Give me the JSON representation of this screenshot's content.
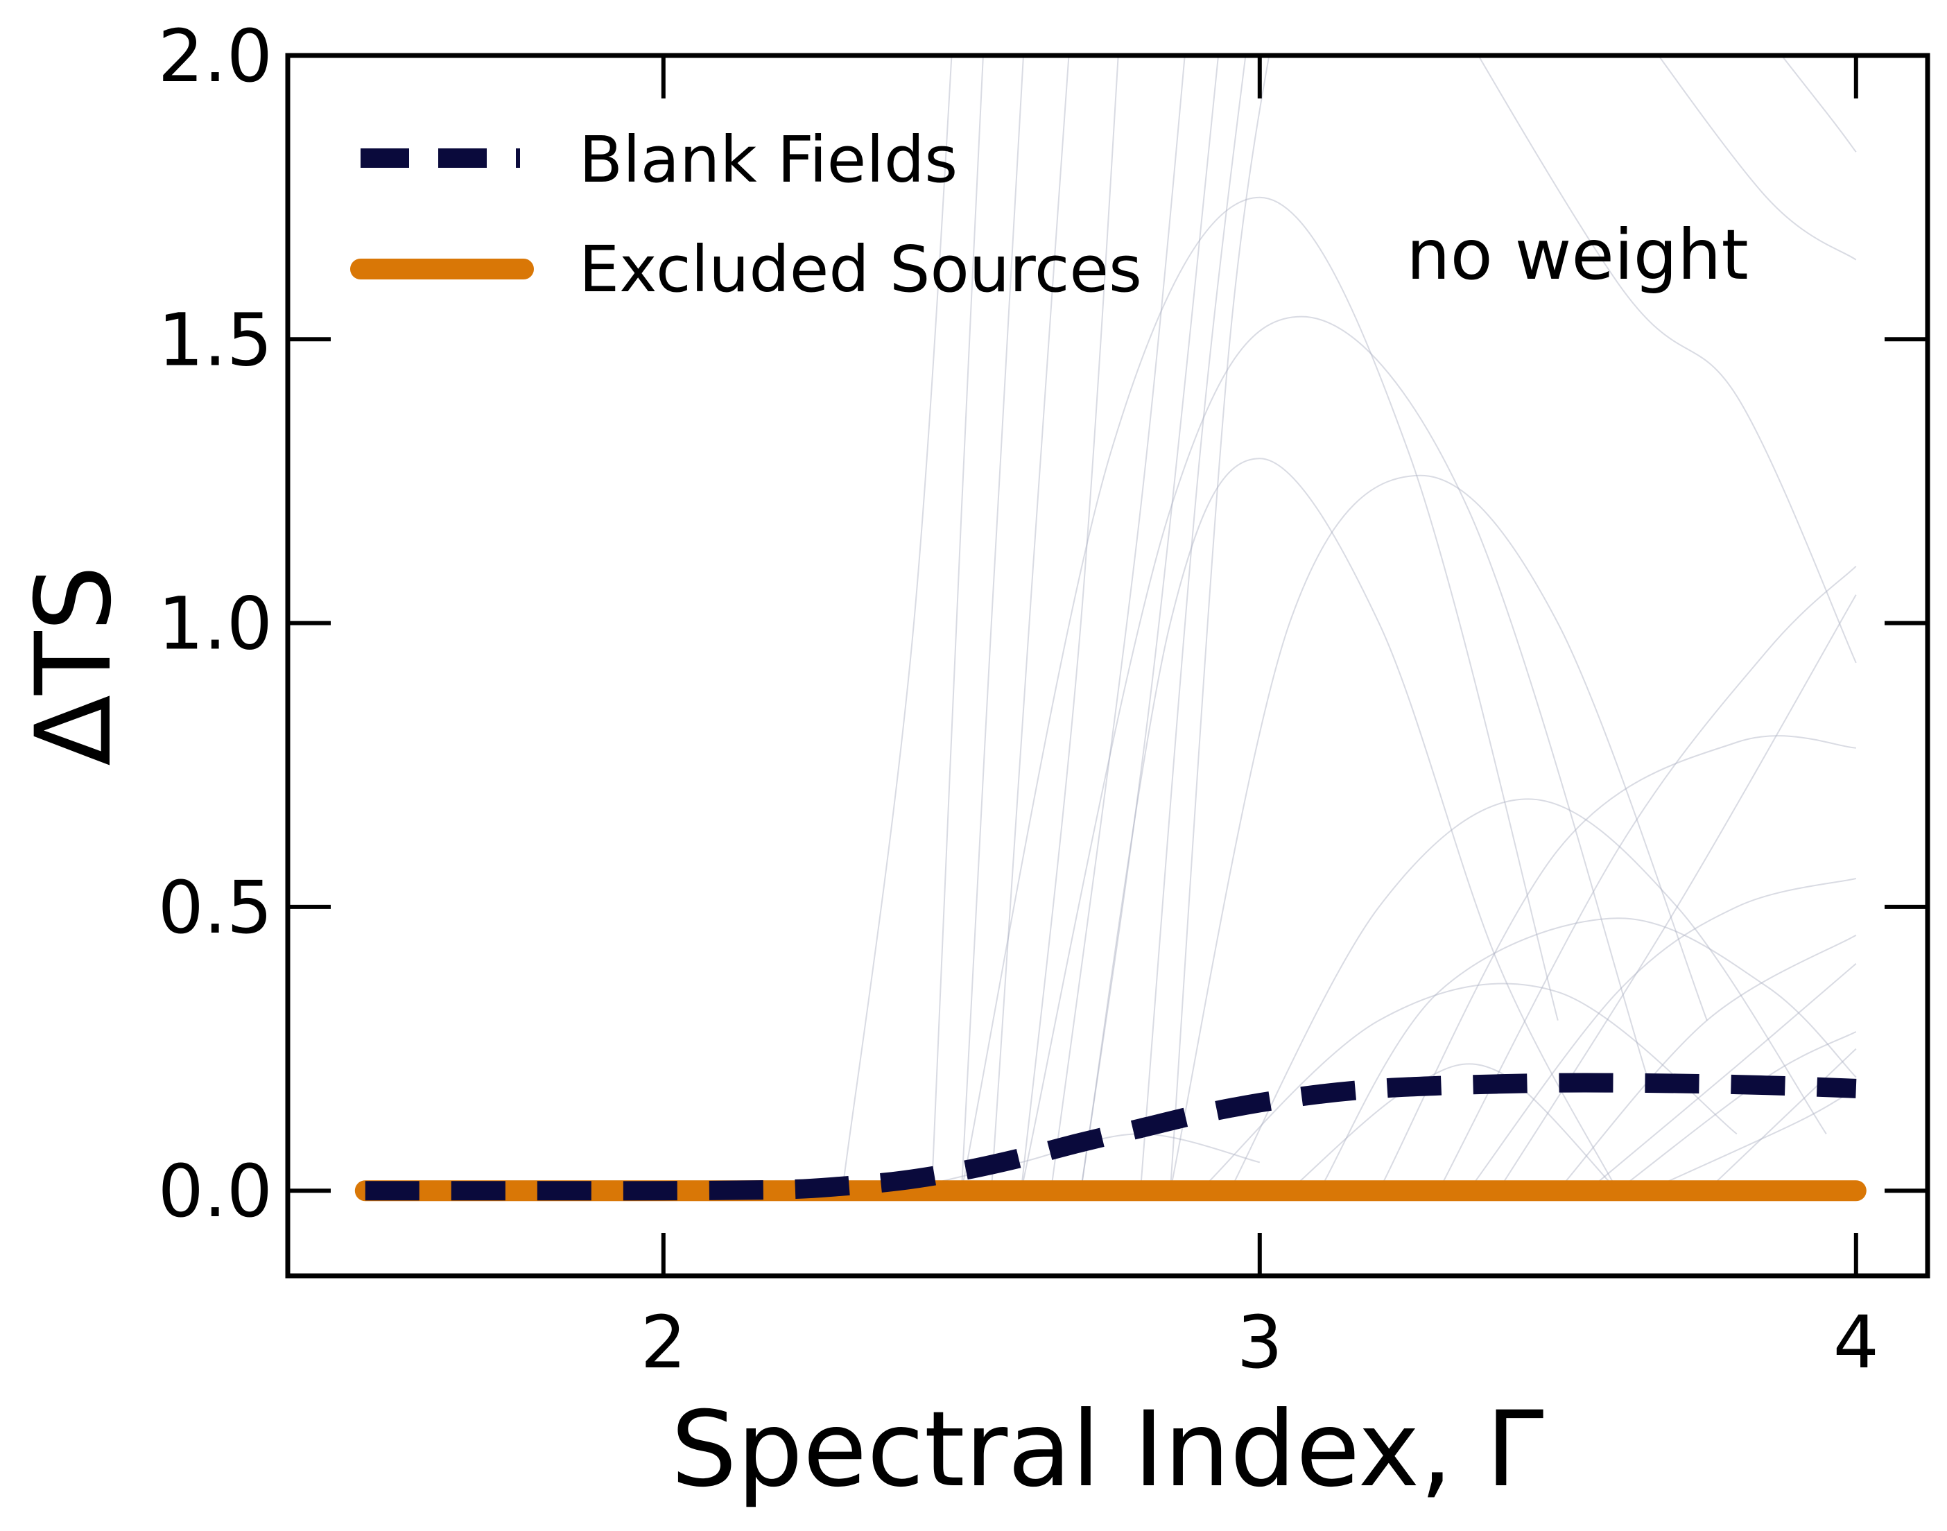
{
  "chart_data": {
    "type": "line",
    "title": "",
    "xlabel": "Spectral Index, Γ",
    "ylabel": "ΔTS",
    "xlim": [
      1.37,
      4.12
    ],
    "ylim": [
      -0.15,
      2.0
    ],
    "x_ticks": [
      2,
      3,
      4
    ],
    "x_tick_labels": [
      "2",
      "3",
      "4"
    ],
    "y_ticks": [
      0.0,
      0.5,
      1.0,
      1.5,
      2.0
    ],
    "y_tick_labels": [
      "0.0",
      "0.5",
      "1.0",
      "1.5",
      "2.0"
    ],
    "grid": false,
    "legend": {
      "placement": "top-left",
      "entries": [
        "Blank Fields",
        "Excluded Sources"
      ]
    },
    "annotation": "no weight",
    "series": [
      {
        "name": "Blank Fields",
        "style": "dashed",
        "color": "#0a0a3c",
        "x": [
          1.5,
          1.8,
          2.0,
          2.2,
          2.3,
          2.4,
          2.5,
          2.6,
          2.7,
          2.8,
          2.9,
          3.0,
          3.1,
          3.2,
          3.3,
          3.4,
          3.5,
          3.6,
          3.7,
          3.8,
          3.9,
          4.0
        ],
        "y": [
          0.0,
          0.0,
          0.0,
          0.002,
          0.008,
          0.018,
          0.035,
          0.058,
          0.085,
          0.11,
          0.135,
          0.155,
          0.17,
          0.18,
          0.185,
          0.188,
          0.19,
          0.19,
          0.189,
          0.187,
          0.184,
          0.18
        ]
      },
      {
        "name": "Excluded Sources",
        "style": "solid",
        "color": "#d97706",
        "x": [
          1.5,
          4.0
        ],
        "y": [
          0.0,
          0.0
        ]
      }
    ],
    "background_curves": {
      "color": "#aab0c0",
      "description_count": 30,
      "curves": [
        {
          "x": [
            2.45,
            2.5,
            2.55
          ],
          "y": [
            0.0,
            1.2,
            2.3
          ]
        },
        {
          "x": [
            2.5,
            2.55,
            2.62
          ],
          "y": [
            0.0,
            1.0,
            2.3
          ]
        },
        {
          "x": [
            2.55,
            2.62,
            2.7
          ],
          "y": [
            0.0,
            1.1,
            2.3
          ]
        },
        {
          "x": [
            2.3,
            2.42,
            2.5
          ],
          "y": [
            0.0,
            1.0,
            2.3
          ]
        },
        {
          "x": [
            2.6,
            2.7,
            2.78
          ],
          "y": [
            0.0,
            1.0,
            2.3
          ]
        },
        {
          "x": [
            2.65,
            2.8,
            2.9
          ],
          "y": [
            0.0,
            1.2,
            2.3
          ]
        },
        {
          "x": [
            2.7,
            2.82,
            2.95
          ],
          "y": [
            0.0,
            0.9,
            2.2
          ]
        },
        {
          "x": [
            2.8,
            2.9,
            3.0
          ],
          "y": [
            0.0,
            1.3,
            2.2
          ]
        },
        {
          "x": [
            2.85,
            2.95,
            3.05
          ],
          "y": [
            0.0,
            1.5,
            2.2
          ]
        },
        {
          "x": [
            2.5,
            2.75,
            3.0,
            3.25,
            3.5
          ],
          "y": [
            0.0,
            1.3,
            1.75,
            1.3,
            0.3
          ]
        },
        {
          "x": [
            2.6,
            2.85,
            3.07,
            3.35,
            3.65
          ],
          "y": [
            0.0,
            1.2,
            1.54,
            1.2,
            0.2
          ]
        },
        {
          "x": [
            2.7,
            2.85,
            3.0,
            3.2,
            3.4,
            3.6
          ],
          "y": [
            0.0,
            1.0,
            1.29,
            1.0,
            0.4,
            0.0
          ]
        },
        {
          "x": [
            2.85,
            3.05,
            3.27,
            3.5,
            3.75
          ],
          "y": [
            0.0,
            1.0,
            1.26,
            1.0,
            0.3
          ]
        },
        {
          "x": [
            2.95,
            3.2,
            3.45,
            3.7,
            3.95
          ],
          "y": [
            0.0,
            0.5,
            0.69,
            0.5,
            0.1
          ]
        },
        {
          "x": [
            3.1,
            3.3,
            3.6,
            3.85,
            4.0
          ],
          "y": [
            0.0,
            0.35,
            0.48,
            0.36,
            0.2
          ]
        },
        {
          "x": [
            3.05,
            3.25,
            3.4,
            3.6
          ],
          "y": [
            0.0,
            0.18,
            0.21,
            0.0
          ]
        },
        {
          "x": [
            3.2,
            3.5,
            3.8,
            4.0
          ],
          "y": [
            0.0,
            0.6,
            0.79,
            0.78
          ]
        },
        {
          "x": [
            3.3,
            3.6,
            3.85,
            4.0
          ],
          "y": [
            0.0,
            0.6,
            0.95,
            1.1
          ]
        },
        {
          "x": [
            3.4,
            3.7,
            4.0
          ],
          "y": [
            0.0,
            0.5,
            1.05
          ]
        },
        {
          "x": [
            3.35,
            3.6,
            3.8,
            4.0
          ],
          "y": [
            0.0,
            0.35,
            0.5,
            0.55
          ]
        },
        {
          "x": [
            3.5,
            3.75,
            4.0
          ],
          "y": [
            0.0,
            0.3,
            0.45
          ]
        },
        {
          "x": [
            3.55,
            3.8,
            4.0
          ],
          "y": [
            0.0,
            0.22,
            0.4
          ]
        },
        {
          "x": [
            3.6,
            3.85,
            4.0
          ],
          "y": [
            0.0,
            0.2,
            0.28
          ]
        },
        {
          "x": [
            3.65,
            3.9,
            4.0
          ],
          "y": [
            0.0,
            0.12,
            0.18
          ]
        },
        {
          "x": [
            3.75,
            3.9,
            4.0
          ],
          "y": [
            0.0,
            0.15,
            0.25
          ]
        },
        {
          "x": [
            3.2,
            3.6,
            3.8,
            4.0
          ],
          "y": [
            2.3,
            1.6,
            1.4,
            0.93
          ]
        },
        {
          "x": [
            3.6,
            3.85,
            4.0
          ],
          "y": [
            2.1,
            1.75,
            1.64
          ]
        },
        {
          "x": [
            3.8,
            3.95,
            4.0
          ],
          "y": [
            2.1,
            1.9,
            1.83
          ]
        },
        {
          "x": [
            2.4,
            2.6,
            2.8,
            3.0
          ],
          "y": [
            0.0,
            0.05,
            0.1,
            0.05
          ]
        },
        {
          "x": [
            2.9,
            3.2,
            3.5,
            3.8
          ],
          "y": [
            0.0,
            0.3,
            0.35,
            0.1
          ]
        }
      ]
    }
  }
}
